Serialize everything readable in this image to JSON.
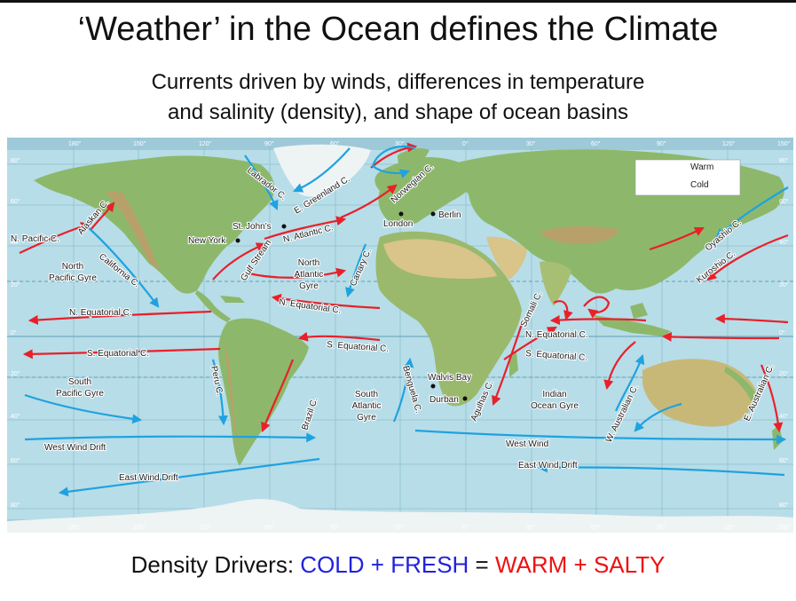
{
  "slide": {
    "title": "‘Weather’ in the Ocean defines the Climate",
    "subtitle_line1": "Currents driven by winds, differences in temperature",
    "subtitle_line2": "and salinity (density), and shape of ocean basins"
  },
  "legend": {
    "warm": "Warm",
    "cold": "Cold",
    "warm_color": "#e8202a",
    "cold_color": "#1fa2e0"
  },
  "map": {
    "longitude_ticks_top": [
      "180°",
      "150°",
      "120°",
      "90°",
      "60°",
      "30°",
      "0°",
      "30°",
      "60°",
      "90°",
      "120°",
      "150°"
    ],
    "longitude_ticks_bottom": [
      "180°",
      "150°",
      "120°",
      "90°",
      "60°",
      "30°",
      "0°",
      "30°",
      "60°",
      "90°",
      "120°",
      "150°"
    ],
    "latitude_ticks_left": [
      "80°",
      "60°",
      "40°",
      "20°",
      "0°",
      "20°",
      "40°",
      "60°",
      "80°"
    ],
    "latitude_ticks_right": [
      "80°",
      "60°",
      "40°",
      "20°",
      "0°",
      "20°",
      "40°",
      "60°",
      "80°"
    ],
    "currents": {
      "alaskan": "Alaskan C.",
      "n_pacific": "N. Pacific C.",
      "labrador": "Labrador C.",
      "e_greenland": "E. Greenland C.",
      "norwegian": "Norwegian C.",
      "n_atlantic": "N. Atlantic C.",
      "gulf_stream": "Gulf Stream",
      "canary": "Canary C.",
      "california": "California C.",
      "n_equatorial_atlantic": "N. Equatorial C.",
      "n_equatorial_pacific": "N. Equatorial C.",
      "s_equatorial_pacific": "S. Equatorial C.",
      "s_equatorial_atlantic": "S. Equatorial C.",
      "peru": "Peru C.",
      "brazil": "Brazil C.",
      "benguela": "Benguela C.",
      "agulhas": "Agulhas C.",
      "somali": "Somali C.",
      "n_equatorial_indian": "N. Equatorial C.",
      "s_equatorial_indian": "S. Equatorial C.",
      "w_australian": "W. Australian C.",
      "e_australian": "E. Australian C.",
      "oyashio": "Oyashio C.",
      "kuroshio": "Kuroshio C.",
      "west_wind_drift_pacific": "West Wind Drift",
      "west_wind_indian": "West Wind",
      "east_wind_drift_pacific": "East Wind Drift",
      "east_wind_drift_indian": "East Wind Drift"
    },
    "gyres": {
      "north_pacific": [
        "North",
        "Pacific Gyre"
      ],
      "north_atlantic": [
        "North",
        "Atlantic",
        "Gyre"
      ],
      "south_pacific": [
        "South",
        "Pacific Gyre"
      ],
      "south_atlantic": [
        "South",
        "Atlantic",
        "Gyre"
      ],
      "indian": [
        "Indian",
        "Ocean Gyre"
      ]
    },
    "cities": {
      "st_johns": "St. John's",
      "new_york": "New York",
      "london": "London",
      "berlin": "Berlin",
      "walvis_bay": "Walvis Bay",
      "durban": "Durban"
    }
  },
  "footer": {
    "prefix": "Density Drivers: ",
    "cold": "COLD",
    "plus1": " + ",
    "fresh": "FRESH",
    "equals": " = ",
    "warm": "WARM",
    "plus2": " + ",
    "salty": "SALTY",
    "blue_color": "#2222dd",
    "red_color": "#ee1111"
  }
}
